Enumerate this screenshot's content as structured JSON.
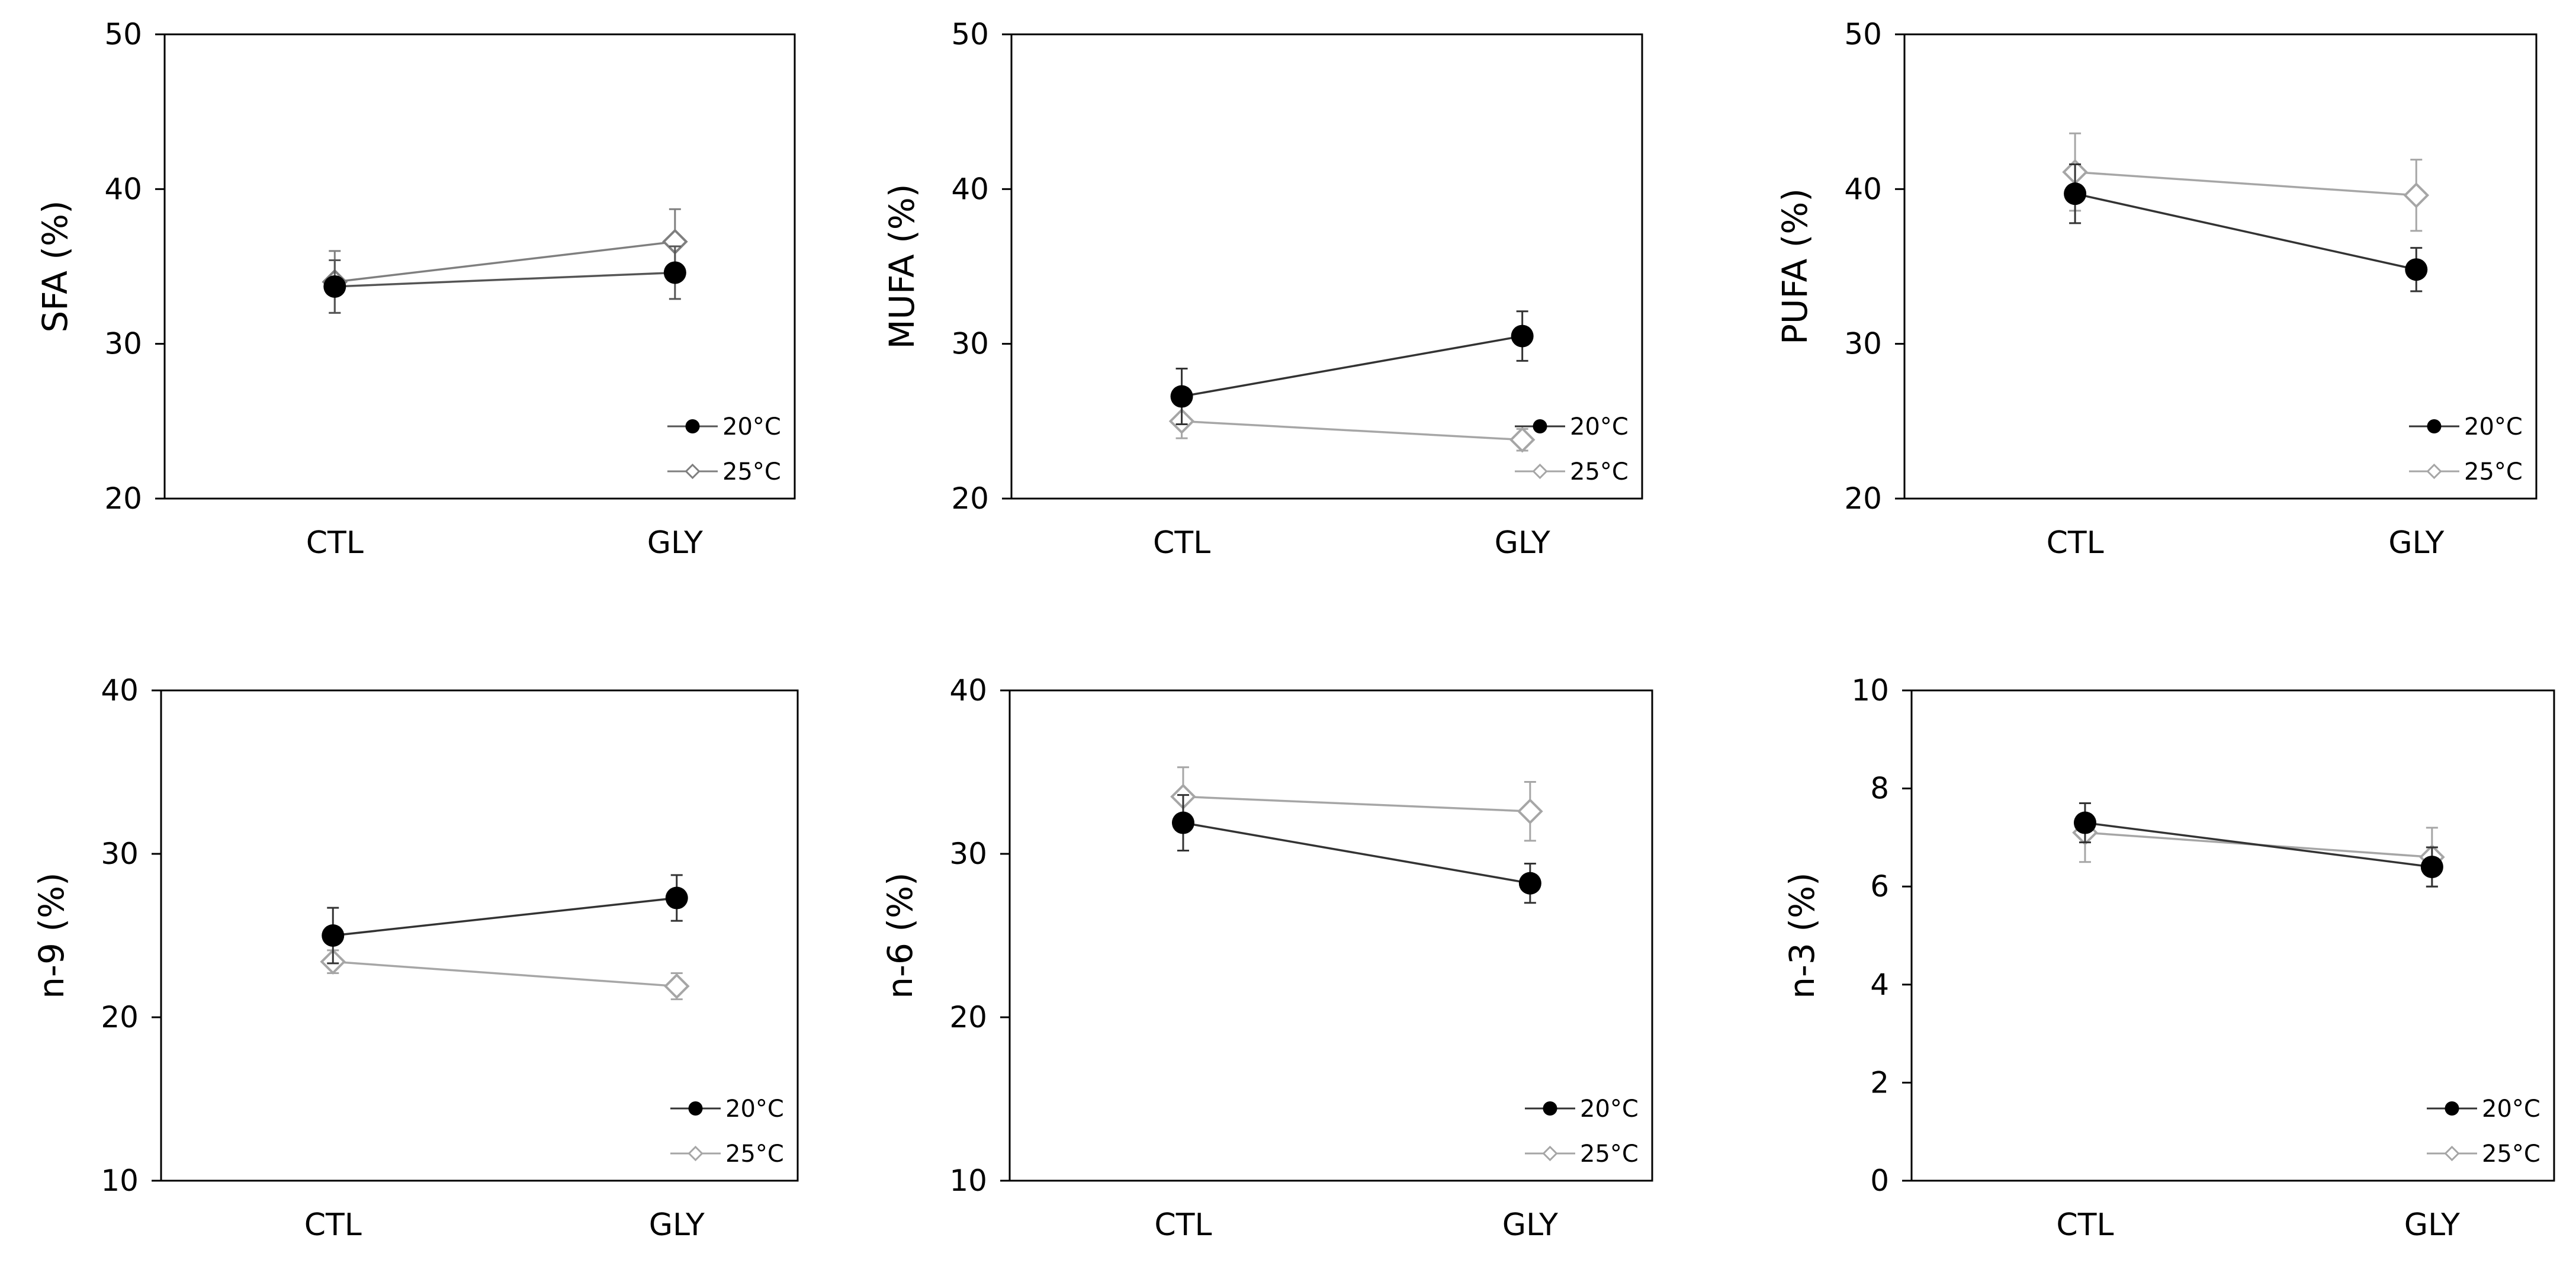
{
  "chart_data": [
    {
      "type": "line",
      "title": "",
      "xlabel": "",
      "ylabel": "SFA (%)",
      "categories": [
        "CTL",
        "GLY"
      ],
      "ylim": [
        20,
        50
      ],
      "yticks": [
        "20",
        "30",
        "40",
        "50"
      ],
      "legend": "bottom-right",
      "grid": false,
      "series": [
        {
          "name": "20°C",
          "values": [
            33.7,
            34.6
          ],
          "errors": [
            1.7,
            1.7
          ],
          "color": "#555555"
        },
        {
          "name": "25°C",
          "values": [
            34.0,
            36.6
          ],
          "errors": [
            2.0,
            2.1
          ],
          "color": "#7f7f7f"
        }
      ]
    },
    {
      "type": "line",
      "title": "",
      "xlabel": "",
      "ylabel": "MUFA (%)",
      "categories": [
        "CTL",
        "GLY"
      ],
      "ylim": [
        20,
        50
      ],
      "yticks": [
        "20",
        "30",
        "40",
        "50"
      ],
      "legend": "bottom-right",
      "grid": false,
      "series": [
        {
          "name": "20°C",
          "values": [
            26.6,
            30.5
          ],
          "errors": [
            1.8,
            1.6
          ],
          "color": "#333333"
        },
        {
          "name": "25°C",
          "values": [
            25.0,
            23.8
          ],
          "errors": [
            1.1,
            0.7
          ],
          "color": "#a6a6a6"
        }
      ]
    },
    {
      "type": "line",
      "title": "",
      "xlabel": "",
      "ylabel": "PUFA (%)",
      "categories": [
        "CTL",
        "GLY"
      ],
      "ylim": [
        20,
        50
      ],
      "yticks": [
        "20",
        "30",
        "40",
        "50"
      ],
      "legend": "bottom-right",
      "grid": false,
      "series": [
        {
          "name": "20°C",
          "values": [
            39.7,
            34.8
          ],
          "errors": [
            1.9,
            1.4
          ],
          "color": "#333333"
        },
        {
          "name": "25°C",
          "values": [
            41.1,
            39.6
          ],
          "errors": [
            2.5,
            2.3
          ],
          "color": "#a6a6a6"
        }
      ]
    },
    {
      "type": "line",
      "title": "",
      "xlabel": "",
      "ylabel": "n-9 (%)",
      "categories": [
        "CTL",
        "GLY"
      ],
      "ylim": [
        10,
        40
      ],
      "yticks": [
        "10",
        "20",
        "30",
        "40"
      ],
      "legend": "bottom-right",
      "grid": false,
      "series": [
        {
          "name": "20°C",
          "values": [
            25.0,
            27.3
          ],
          "errors": [
            1.7,
            1.4
          ],
          "color": "#333333"
        },
        {
          "name": "25°C",
          "values": [
            23.4,
            21.9
          ],
          "errors": [
            0.7,
            0.8
          ],
          "color": "#a6a6a6"
        }
      ]
    },
    {
      "type": "line",
      "title": "",
      "xlabel": "",
      "ylabel": "n-6 (%)",
      "categories": [
        "CTL",
        "GLY"
      ],
      "ylim": [
        10,
        40
      ],
      "yticks": [
        "10",
        "20",
        "30",
        "40"
      ],
      "legend": "bottom-right",
      "grid": false,
      "series": [
        {
          "name": "20°C",
          "values": [
            31.9,
            28.2
          ],
          "errors": [
            1.7,
            1.2
          ],
          "color": "#333333"
        },
        {
          "name": "25°C",
          "values": [
            33.5,
            32.6
          ],
          "errors": [
            1.8,
            1.8
          ],
          "color": "#a6a6a6"
        }
      ]
    },
    {
      "type": "line",
      "title": "",
      "xlabel": "",
      "ylabel": "n-3 (%)",
      "categories": [
        "CTL",
        "GLY"
      ],
      "ylim": [
        0,
        10
      ],
      "yticks": [
        "0",
        "2",
        "4",
        "6",
        "8",
        "10"
      ],
      "legend": "bottom-right",
      "grid": false,
      "series": [
        {
          "name": "20°C",
          "values": [
            7.3,
            6.4
          ],
          "errors": [
            0.4,
            0.4
          ],
          "color": "#333333"
        },
        {
          "name": "25°C",
          "values": [
            7.1,
            6.6
          ],
          "errors": [
            0.6,
            0.6
          ],
          "color": "#a6a6a6"
        }
      ]
    }
  ]
}
